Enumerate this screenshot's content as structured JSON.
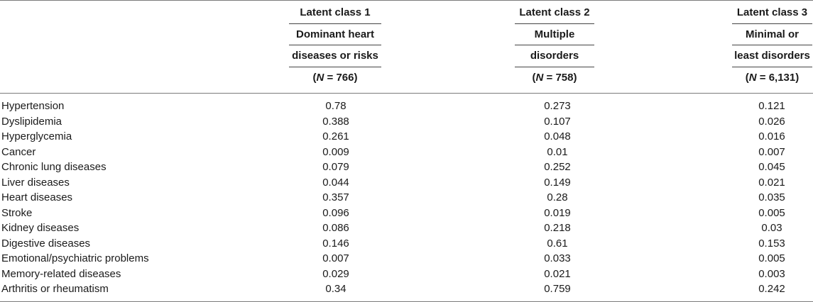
{
  "columns": [
    {
      "title": "Latent class 1",
      "name_line1": "Dominant heart",
      "name_line2": "diseases or risks",
      "n_label": "N",
      "n_value": " = 766)"
    },
    {
      "title": "Latent class 2",
      "name_line1": "Multiple",
      "name_line2": "disorders",
      "n_label": "N",
      "n_value": " = 758)"
    },
    {
      "title": "Latent class 3",
      "name_line1": "Minimal or",
      "name_line2": "least disorders",
      "n_label": "N",
      "n_value": " = 6,131)"
    }
  ],
  "rows": [
    {
      "label": "Hypertension",
      "values": [
        "0.78",
        "0.273",
        "0.121"
      ]
    },
    {
      "label": "Dyslipidemia",
      "values": [
        "0.388",
        "0.107",
        "0.026"
      ]
    },
    {
      "label": "Hyperglycemia",
      "values": [
        "0.261",
        "0.048",
        "0.016"
      ]
    },
    {
      "label": "Cancer",
      "values": [
        "0.009",
        "0.01",
        "0.007"
      ]
    },
    {
      "label": "Chronic lung diseases",
      "values": [
        "0.079",
        "0.252",
        "0.045"
      ]
    },
    {
      "label": "Liver diseases",
      "values": [
        "0.044",
        "0.149",
        "0.021"
      ]
    },
    {
      "label": "Heart diseases",
      "values": [
        "0.357",
        "0.28",
        "0.035"
      ]
    },
    {
      "label": "Stroke",
      "values": [
        "0.096",
        "0.019",
        "0.005"
      ]
    },
    {
      "label": "Kidney diseases",
      "values": [
        "0.086",
        "0.218",
        "0.03"
      ]
    },
    {
      "label": "Digestive diseases",
      "values": [
        "0.146",
        "0.61",
        "0.153"
      ]
    },
    {
      "label": "Emotional/psychiatric problems",
      "values": [
        "0.007",
        "0.033",
        "0.005"
      ]
    },
    {
      "label": "Memory-related diseases",
      "values": [
        "0.029",
        "0.021",
        "0.003"
      ]
    },
    {
      "label": "Arthritis or rheumatism",
      "values": [
        "0.34",
        "0.759",
        "0.242"
      ]
    }
  ]
}
